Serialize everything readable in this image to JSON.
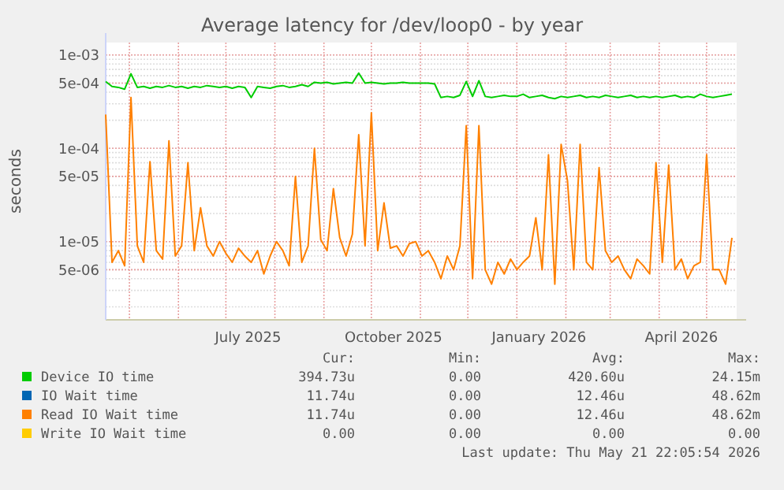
{
  "chart_data": {
    "type": "line",
    "title": "Average latency for /dev/loop0 - by year",
    "ylabel": "seconds",
    "log": "y",
    "grid": true,
    "legend": "bottom",
    "line_style": "solid",
    "xlim": [
      "2025-04-16",
      "2026-05-20"
    ],
    "xticks": [
      {
        "value": "2025-05-01",
        "label": null
      },
      {
        "value": "2025-06-01",
        "label": null
      },
      {
        "value": "2025-07-01",
        "label": null
      },
      {
        "value": "2025-07-15",
        "label": "July 2025"
      },
      {
        "value": "2025-08-01",
        "label": null
      },
      {
        "value": "2025-09-01",
        "label": null
      },
      {
        "value": "2025-10-01",
        "label": null
      },
      {
        "value": "2025-10-15",
        "label": "October 2025"
      },
      {
        "value": "2025-11-01",
        "label": null
      },
      {
        "value": "2025-12-01",
        "label": null
      },
      {
        "value": "2026-01-01",
        "label": null
      },
      {
        "value": "2026-01-15",
        "label": "January 2026"
      },
      {
        "value": "2026-02-01",
        "label": null
      },
      {
        "value": "2026-03-01",
        "label": null
      },
      {
        "value": "2026-04-01",
        "label": null
      },
      {
        "value": "2026-04-15",
        "label": "April 2026"
      },
      {
        "value": "2026-05-01",
        "label": null
      }
    ],
    "ylim": [
      1.45e-06,
      0.00136
    ],
    "yticks": [
      {
        "value": 5e-06,
        "label": "5e-06"
      },
      {
        "value": 1e-05,
        "label": "1e-05"
      },
      {
        "value": 5e-05,
        "label": "5e-05"
      },
      {
        "value": 0.0001,
        "label": "1e-04"
      },
      {
        "value": 0.0005,
        "label": "5e-04"
      },
      {
        "value": 0.001,
        "label": "1e-03"
      }
    ],
    "x": [
      "2025-04-16",
      "2025-04-20",
      "2025-04-24",
      "2025-04-28",
      "2025-05-02",
      "2025-05-06",
      "2025-05-10",
      "2025-05-14",
      "2025-05-18",
      "2025-05-22",
      "2025-05-26",
      "2025-05-30",
      "2025-06-03",
      "2025-06-07",
      "2025-06-11",
      "2025-06-15",
      "2025-06-19",
      "2025-06-23",
      "2025-06-27",
      "2025-07-01",
      "2025-07-05",
      "2025-07-09",
      "2025-07-13",
      "2025-07-17",
      "2025-07-21",
      "2025-07-25",
      "2025-07-29",
      "2025-08-02",
      "2025-08-06",
      "2025-08-10",
      "2025-08-14",
      "2025-08-18",
      "2025-08-22",
      "2025-08-26",
      "2025-08-30",
      "2025-09-03",
      "2025-09-07",
      "2025-09-11",
      "2025-09-15",
      "2025-09-19",
      "2025-09-23",
      "2025-09-27",
      "2025-10-01",
      "2025-10-05",
      "2025-10-09",
      "2025-10-13",
      "2025-10-17",
      "2025-10-21",
      "2025-10-25",
      "2025-10-29",
      "2025-11-02",
      "2025-11-06",
      "2025-11-10",
      "2025-11-14",
      "2025-11-18",
      "2025-11-22",
      "2025-11-26",
      "2025-11-30",
      "2025-12-04",
      "2025-12-08",
      "2025-12-12",
      "2025-12-16",
      "2025-12-20",
      "2025-12-24",
      "2025-12-28",
      "2026-01-01",
      "2026-01-05",
      "2026-01-09",
      "2026-01-13",
      "2026-01-17",
      "2026-01-21",
      "2026-01-25",
      "2026-01-29",
      "2026-02-02",
      "2026-02-06",
      "2026-02-10",
      "2026-02-14",
      "2026-02-18",
      "2026-02-22",
      "2026-02-26",
      "2026-03-02",
      "2026-03-06",
      "2026-03-10",
      "2026-03-14",
      "2026-03-18",
      "2026-03-22",
      "2026-03-26",
      "2026-03-30",
      "2026-04-03",
      "2026-04-07",
      "2026-04-11",
      "2026-04-15",
      "2026-04-19",
      "2026-04-23",
      "2026-04-27",
      "2026-05-01",
      "2026-05-05",
      "2026-05-09",
      "2026-05-13",
      "2026-05-17"
    ],
    "series": [
      {
        "name": "Device IO time",
        "color": "#00cc00",
        "values": [
          0.00052,
          0.00046,
          0.00045,
          0.00043,
          0.00063,
          0.00045,
          0.00046,
          0.00044,
          0.00046,
          0.00045,
          0.00047,
          0.00045,
          0.00046,
          0.00044,
          0.00046,
          0.00045,
          0.00047,
          0.00046,
          0.00045,
          0.00046,
          0.00044,
          0.00046,
          0.00045,
          0.00035,
          0.00046,
          0.00045,
          0.00044,
          0.00046,
          0.00047,
          0.00045,
          0.00046,
          0.00048,
          0.00046,
          0.00051,
          0.0005,
          0.00051,
          0.00049,
          0.0005,
          0.00051,
          0.0005,
          0.00064,
          0.0005,
          0.00051,
          0.0005,
          0.00049,
          0.0005,
          0.0005,
          0.00051,
          0.0005,
          0.0005,
          0.0005,
          0.0005,
          0.00049,
          0.00035,
          0.00036,
          0.00035,
          0.00037,
          0.00052,
          0.00036,
          0.00053,
          0.00036,
          0.00035,
          0.00036,
          0.00037,
          0.00036,
          0.00036,
          0.00038,
          0.00035,
          0.00036,
          0.00037,
          0.00035,
          0.00034,
          0.00036,
          0.00035,
          0.00036,
          0.00037,
          0.00035,
          0.00036,
          0.00035,
          0.00037,
          0.00036,
          0.00035,
          0.00036,
          0.00037,
          0.00035,
          0.00036,
          0.00035,
          0.00036,
          0.00035,
          0.00036,
          0.00037,
          0.00035,
          0.00036,
          0.00035,
          0.00038,
          0.00036,
          0.00035,
          0.00036,
          0.00037,
          0.00038
        ]
      },
      {
        "name": "IO Wait time",
        "color": "#0066b3",
        "values": [
          null,
          null,
          null,
          null,
          null,
          null,
          null,
          null,
          null,
          null,
          null,
          null,
          null,
          null,
          null,
          null,
          null,
          null,
          null,
          null,
          null,
          null,
          null,
          null,
          null,
          null,
          null,
          null,
          null,
          null,
          null,
          null,
          null,
          null,
          null,
          null,
          null,
          null,
          null,
          null,
          null,
          null,
          null,
          null,
          null,
          null,
          null,
          null,
          null,
          null,
          null,
          null,
          null,
          null,
          null,
          null,
          null,
          null,
          null,
          null,
          null,
          null,
          null,
          null,
          null,
          null,
          null,
          null,
          null,
          null,
          null,
          null,
          null,
          null,
          null,
          null,
          null,
          null,
          null,
          null,
          null,
          null,
          null,
          null,
          null,
          null,
          null,
          null,
          null,
          null,
          null,
          null,
          null,
          null,
          null,
          null,
          null,
          null,
          null,
          null
        ]
      },
      {
        "name": "Read IO Wait time",
        "color": "#ff8000",
        "values": [
          0.00023,
          6e-06,
          8e-06,
          5.5e-06,
          0.00035,
          9e-06,
          6e-06,
          7.2e-05,
          8e-06,
          6.5e-06,
          0.00012,
          7e-06,
          9e-06,
          7e-05,
          8e-06,
          2.3e-05,
          9e-06,
          7e-06,
          1e-05,
          7.5e-06,
          6e-06,
          8.5e-06,
          7e-06,
          6e-06,
          8e-06,
          4.5e-06,
          7e-06,
          1e-05,
          8e-06,
          5.5e-06,
          5e-05,
          6e-06,
          9e-06,
          0.0001,
          1.05e-05,
          8e-06,
          3.7e-05,
          1.1e-05,
          7e-06,
          1.2e-05,
          0.00014,
          9e-06,
          0.00024,
          8e-06,
          2.6e-05,
          8.5e-06,
          9e-06,
          7e-06,
          9.5e-06,
          1e-05,
          7e-06,
          8e-06,
          6e-06,
          4e-06,
          7e-06,
          5e-06,
          9e-06,
          0.000175,
          4e-06,
          0.000175,
          5e-06,
          3.5e-06,
          6e-06,
          4.5e-06,
          6.5e-06,
          5e-06,
          6e-06,
          7e-06,
          1.8e-05,
          5e-06,
          8.5e-05,
          3.5e-06,
          0.00011,
          4.5e-05,
          5e-06,
          0.00011,
          6e-06,
          5e-06,
          6.2e-05,
          8e-06,
          6e-06,
          7e-06,
          5e-06,
          4e-06,
          6.5e-06,
          5.5e-06,
          4.5e-06,
          7e-05,
          6e-06,
          6.6e-05,
          5e-06,
          6.5e-06,
          4e-06,
          5.5e-06,
          6e-06,
          8.5e-05,
          5e-06,
          5e-06,
          3.5e-06,
          1.1e-05
        ]
      },
      {
        "name": "Write IO Wait time",
        "color": "#ffcc00",
        "values": [
          null,
          null,
          null,
          null,
          null,
          null,
          null,
          null,
          null,
          null,
          null,
          null,
          null,
          null,
          null,
          null,
          null,
          null,
          null,
          null,
          null,
          null,
          null,
          null,
          null,
          null,
          null,
          null,
          null,
          null,
          null,
          null,
          null,
          null,
          null,
          null,
          null,
          null,
          null,
          null,
          null,
          null,
          null,
          null,
          null,
          null,
          null,
          null,
          null,
          null,
          null,
          null,
          null,
          null,
          null,
          null,
          null,
          null,
          null,
          null,
          null,
          null,
          null,
          null,
          null,
          null,
          null,
          null,
          null,
          null,
          null,
          null,
          null,
          null,
          null,
          null,
          null,
          null,
          null,
          null,
          null,
          null,
          null,
          null,
          null,
          null,
          null,
          null,
          null,
          null,
          null,
          null,
          null,
          null,
          null,
          null,
          null,
          null,
          null,
          null
        ]
      }
    ],
    "annotations": [
      "Cur:",
      "Min:",
      "Avg:",
      "Max:",
      "394.73u",
      "0.00",
      "420.60u",
      "24.15m",
      "11.74u",
      "0.00",
      "12.46u",
      "48.62m",
      "11.74u",
      "0.00",
      "12.46u",
      "48.62m",
      "0.00",
      "0.00",
      "0.00",
      "0.00",
      "Last update: Thu May 21 22:05:54 2026"
    ]
  }
}
